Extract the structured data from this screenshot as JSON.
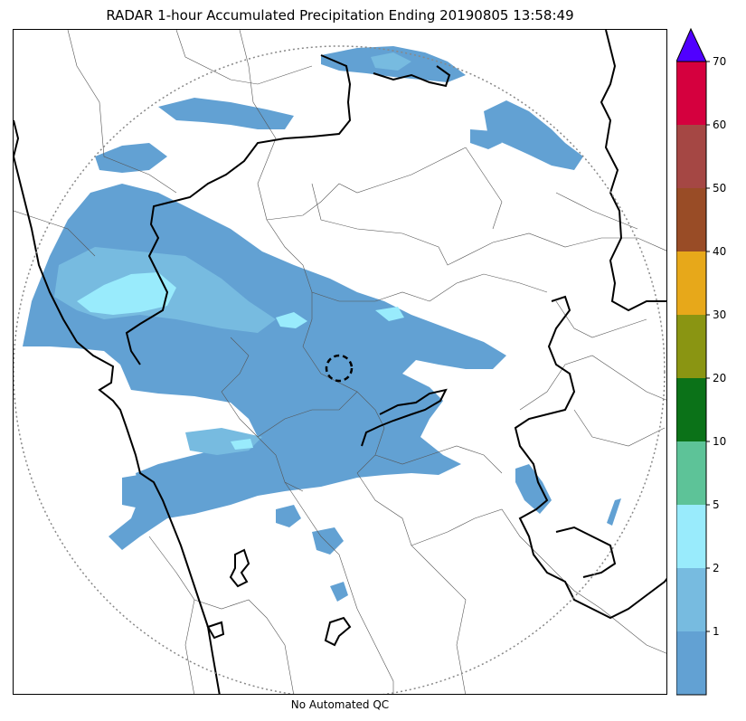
{
  "title": "RADAR 1-hour Accumulated Precipitation Ending 20190805 13:58:49",
  "footer_note": "No Automated QC",
  "colorbar": {
    "ticks": [
      "1",
      "2",
      "5",
      "10",
      "20",
      "30",
      "40",
      "50",
      "60",
      "70"
    ],
    "bins": [
      {
        "color": "#62a1d3"
      },
      {
        "color": "#77bbe0"
      },
      {
        "color": "#99ebfc"
      },
      {
        "color": "#5dc398"
      },
      {
        "color": "#0b7218"
      },
      {
        "color": "#8a9512"
      },
      {
        "color": "#e7a81a"
      },
      {
        "color": "#994c26"
      },
      {
        "color": "#a54744"
      },
      {
        "color": "#d5003e"
      }
    ],
    "over_color": "#5000ff",
    "extend": "max"
  },
  "map": {
    "radar_range_ring": "dotted",
    "radar_site_marker": "dashed-circle",
    "colors": {
      "light_rain": "#62a1d3",
      "moderate_rain": "#77bbe0",
      "heavy_rain": "#99ebfc",
      "coastline": "#000000",
      "state_border": "#000000",
      "district_border": "#555555",
      "range_ring": "#888888"
    }
  }
}
